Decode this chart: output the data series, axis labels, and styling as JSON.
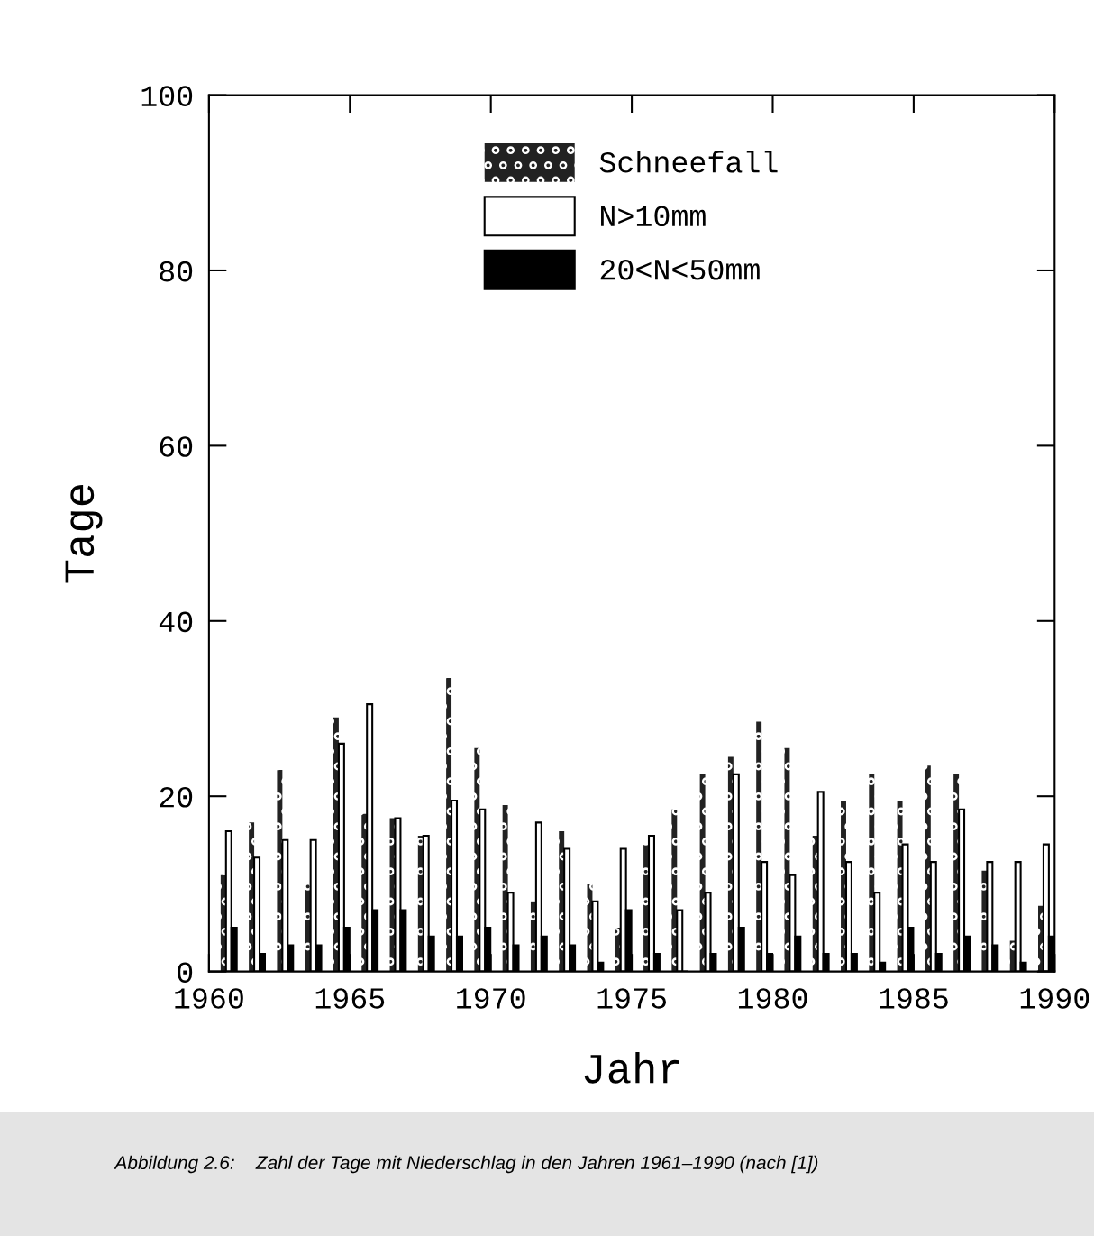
{
  "chart_data": {
    "type": "bar",
    "xlabel": "Jahr",
    "ylabel": "Tage",
    "x": [
      1961,
      1962,
      1963,
      1964,
      1965,
      1966,
      1967,
      1968,
      1969,
      1970,
      1971,
      1972,
      1973,
      1974,
      1975,
      1976,
      1977,
      1978,
      1979,
      1980,
      1981,
      1982,
      1983,
      1984,
      1985,
      1986,
      1987,
      1988,
      1989,
      1990
    ],
    "series": [
      {
        "name": "Schneefall",
        "color": "#222222",
        "values": [
          11,
          17,
          23,
          10,
          29,
          18,
          17.5,
          15.5,
          33.5,
          25.5,
          19,
          8,
          16,
          10,
          5,
          14.5,
          18.5,
          22.5,
          24.5,
          28.5,
          25.5,
          15.5,
          19.5,
          22.5,
          19.5,
          23.5,
          22.5,
          11.5,
          3.5,
          7.5
        ]
      },
      {
        "name": "N>10mm",
        "color": "#ffffff",
        "values": [
          16,
          13,
          15,
          15,
          26,
          30.5,
          17.5,
          15.5,
          19.5,
          18.5,
          9,
          17,
          14,
          8,
          14,
          15.5,
          7,
          9,
          22.5,
          12.5,
          11,
          20.5,
          12.5,
          9,
          14.5,
          12.5,
          18.5,
          12.5,
          12.5,
          14.5
        ]
      },
      {
        "name": "20<N<50mm",
        "color": "#000000",
        "values": [
          5,
          2,
          3,
          3,
          5,
          7,
          7,
          4,
          4,
          5,
          3,
          4,
          3,
          1,
          7,
          2,
          0,
          2,
          5,
          2,
          4,
          2,
          2,
          1,
          5,
          2,
          4,
          3,
          1,
          4
        ]
      }
    ],
    "xlim": [
      1960,
      1990
    ],
    "xticks": [
      1960,
      1965,
      1970,
      1975,
      1980,
      1985,
      1990
    ],
    "ylim": [
      0,
      100
    ],
    "yticks": [
      0,
      20,
      40,
      60,
      80,
      100
    ],
    "grid": false,
    "legend": "top",
    "annotations": [
      "Abbildung 2.6:    Zahl der Tage mit Niederschlag in den Jahren 1961–1990 (nach [1])"
    ]
  }
}
